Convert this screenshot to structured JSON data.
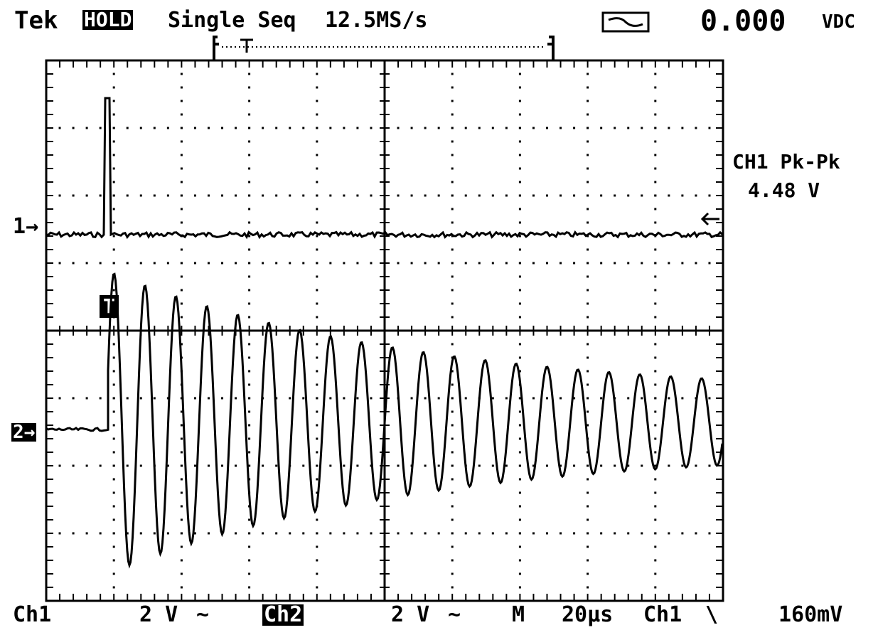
{
  "header": {
    "brand": "Tek",
    "mode_badge": "HOLD",
    "acquisition": "Single Seq",
    "sample_rate": "12.5MS/s",
    "meter_value": "0.000",
    "meter_unit": "VDC"
  },
  "measurement": {
    "label": "CH1 Pk-Pk",
    "value": "4.48 V"
  },
  "markers": {
    "ch1_marker": "1",
    "ch2_marker": "2",
    "trigger_marker": "T"
  },
  "footer": {
    "ch1_label": "Ch1",
    "ch1_scale": "2 V",
    "ch1_coupling": "~",
    "ch2_label": "Ch2",
    "ch2_scale": "2 V",
    "ch2_coupling": "~",
    "timebase_mode": "M",
    "timebase": "20µs",
    "trigger_source": "Ch1",
    "trigger_slope": "\\",
    "trigger_level": "160mV"
  },
  "colors": {
    "background": "#ffffff",
    "foreground": "#000000"
  }
}
